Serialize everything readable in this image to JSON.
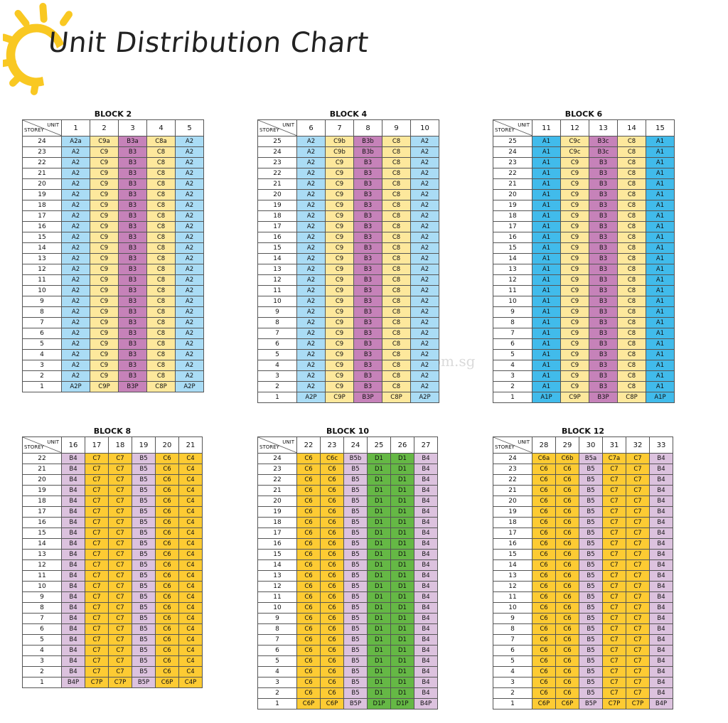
{
  "page": {
    "title": "Unit Distribution Chart",
    "watermark": "NewLaunchesOnline.com.sg"
  },
  "header_labels": {
    "unit": "UNIT",
    "storey": "STOREY"
  },
  "colors": {
    "blue": "#aadcf5",
    "cyan": "#41bbeb",
    "cream": "#fde89c",
    "mauve": "#c682b9",
    "gold": "#fdcb33",
    "lilac": "#dcc2de",
    "green": "#65b845"
  },
  "blocks": [
    {
      "name": "BLOCK 2",
      "top_storey": 24,
      "units": [
        {
          "no": "1",
          "color": "blue",
          "top": "A2a",
          "mid": "A2",
          "ground": "A2P"
        },
        {
          "no": "2",
          "color": "cream",
          "top": "C9a",
          "mid": "C9",
          "ground": "C9P"
        },
        {
          "no": "3",
          "color": "mauve",
          "top": "B3a",
          "mid": "B3",
          "ground": "B3P"
        },
        {
          "no": "4",
          "color": "cream",
          "top": "C8a",
          "mid": "C8",
          "ground": "C8P"
        },
        {
          "no": "5",
          "color": "blue",
          "top": "A2",
          "mid": "A2",
          "ground": "A2P"
        }
      ]
    },
    {
      "name": "BLOCK 4",
      "top_storey": 25,
      "units": [
        {
          "no": "6",
          "color": "blue",
          "top": "A2",
          "second": "A2",
          "mid": "A2",
          "ground": "A2P"
        },
        {
          "no": "7",
          "color": "cream",
          "top": "C9b",
          "second": "C9b",
          "mid": "C9",
          "ground": "C9P"
        },
        {
          "no": "8",
          "color": "mauve",
          "top": "B3b",
          "second": "B3b",
          "mid": "B3",
          "ground": "B3P"
        },
        {
          "no": "9",
          "color": "cream",
          "top": "C8",
          "second": "C8",
          "mid": "C8",
          "ground": "C8P"
        },
        {
          "no": "10",
          "color": "blue",
          "top": "A2",
          "second": "A2",
          "mid": "A2",
          "ground": "A2P"
        }
      ]
    },
    {
      "name": "BLOCK 6",
      "top_storey": 25,
      "units": [
        {
          "no": "11",
          "color": "cyan",
          "top": "A1",
          "second": "A1",
          "mid": "A1",
          "ground": "A1P"
        },
        {
          "no": "12",
          "color": "cream",
          "top": "C9c",
          "second": "C9c",
          "mid": "C9",
          "ground": "C9P"
        },
        {
          "no": "13",
          "color": "mauve",
          "top": "B3c",
          "second": "B3c",
          "mid": "B3",
          "ground": "B3P"
        },
        {
          "no": "14",
          "color": "cream",
          "top": "C8",
          "second": "C8",
          "mid": "C8",
          "ground": "C8P"
        },
        {
          "no": "15",
          "color": "cyan",
          "top": "A1",
          "second": "A1",
          "mid": "A1",
          "ground": "A1P"
        }
      ]
    },
    {
      "name": "BLOCK 8",
      "top_storey": 22,
      "units": [
        {
          "no": "16",
          "color": "lilac",
          "top": "B4",
          "mid": "B4",
          "ground": "B4P"
        },
        {
          "no": "17",
          "color": "gold",
          "top": "C7",
          "mid": "C7",
          "ground": "C7P"
        },
        {
          "no": "18",
          "color": "gold",
          "top": "C7",
          "mid": "C7",
          "ground": "C7P"
        },
        {
          "no": "19",
          "color": "lilac",
          "top": "B5",
          "mid": "B5",
          "ground": "B5P"
        },
        {
          "no": "20",
          "color": "gold",
          "top": "C6",
          "mid": "C6",
          "ground": "C6P"
        },
        {
          "no": "21",
          "color": "gold",
          "top": "C4",
          "mid": "C4",
          "ground": "C4P"
        }
      ]
    },
    {
      "name": "BLOCK 10",
      "top_storey": 24,
      "units": [
        {
          "no": "22",
          "color": "gold",
          "top": "C6",
          "mid": "C6",
          "ground": "C6P"
        },
        {
          "no": "23",
          "color": "gold",
          "top": "C6c",
          "mid": "C6",
          "ground": "C6P"
        },
        {
          "no": "24",
          "color": "lilac",
          "top": "B5b",
          "mid": "B5",
          "ground": "B5P"
        },
        {
          "no": "25",
          "color": "green",
          "top": "D1",
          "mid": "D1",
          "ground": "D1P"
        },
        {
          "no": "26",
          "color": "green",
          "top": "D1",
          "mid": "D1",
          "ground": "D1P"
        },
        {
          "no": "27",
          "color": "lilac",
          "top": "B4",
          "mid": "B4",
          "ground": "B4P"
        }
      ]
    },
    {
      "name": "BLOCK 12",
      "top_storey": 24,
      "units": [
        {
          "no": "28",
          "color": "gold",
          "top": "C6a",
          "mid": "C6",
          "ground": "C6P"
        },
        {
          "no": "29",
          "color": "gold",
          "top": "C6b",
          "mid": "C6",
          "ground": "C6P"
        },
        {
          "no": "30",
          "color": "lilac",
          "top": "B5a",
          "mid": "B5",
          "ground": "B5P"
        },
        {
          "no": "31",
          "color": "gold",
          "top": "C7a",
          "mid": "C7",
          "ground": "C7P"
        },
        {
          "no": "32",
          "color": "gold",
          "top": "C7",
          "mid": "C7",
          "ground": "C7P"
        },
        {
          "no": "33",
          "color": "lilac",
          "top": "B4",
          "mid": "B4",
          "ground": "B4P"
        }
      ]
    }
  ]
}
